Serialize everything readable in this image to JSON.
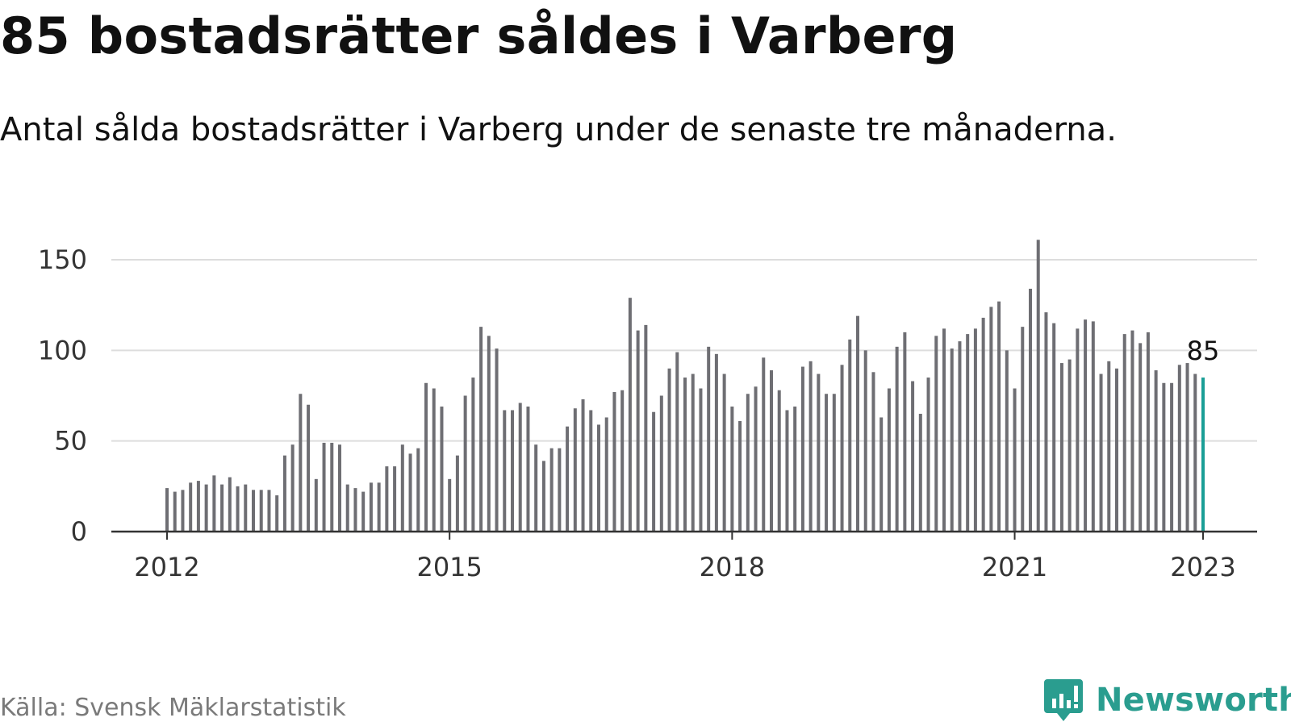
{
  "title": "85 bostadsrätter såldes i Varberg",
  "subtitle": "Antal sålda bostadsrätter i Varberg under de senaste tre månaderna.",
  "source": "Källa: Svensk Mäklarstatistik",
  "brand": {
    "name": "Newsworthy",
    "icon": "newsworthy-logo-icon"
  },
  "colors": {
    "bar": "#6e6e73",
    "highlight": "#1a9e96",
    "grid": "#dddddd",
    "axis": "#333333",
    "brand": "#2a9d8f"
  },
  "chart_data": {
    "type": "bar",
    "title": "85 bostadsrätter såldes i Varberg",
    "xlabel": "",
    "ylabel": "",
    "ylim": [
      0,
      165
    ],
    "yticks": [
      0,
      50,
      100,
      150
    ],
    "xticks": [
      {
        "label": "2012",
        "index": 0
      },
      {
        "label": "2015",
        "index": 36
      },
      {
        "label": "2018",
        "index": 72
      },
      {
        "label": "2021",
        "index": 108
      },
      {
        "label": "2023",
        "index": 132
      }
    ],
    "start": "2012-01",
    "frequency": "monthly",
    "grid": true,
    "legend": "none",
    "values": [
      24,
      22,
      23,
      27,
      28,
      26,
      31,
      26,
      30,
      25,
      26,
      23,
      23,
      23,
      20,
      42,
      48,
      76,
      70,
      29,
      49,
      49,
      48,
      26,
      24,
      22,
      27,
      27,
      36,
      36,
      48,
      43,
      46,
      82,
      79,
      69,
      29,
      42,
      75,
      85,
      113,
      108,
      101,
      67,
      67,
      71,
      69,
      48,
      39,
      46,
      46,
      58,
      68,
      73,
      67,
      59,
      63,
      77,
      78,
      129,
      111,
      114,
      66,
      75,
      90,
      99,
      85,
      87,
      79,
      102,
      98,
      87,
      69,
      61,
      76,
      80,
      96,
      89,
      78,
      67,
      69,
      91,
      94,
      87,
      76,
      76,
      92,
      106,
      119,
      100,
      88,
      63,
      79,
      102,
      110,
      83,
      65,
      85,
      108,
      112,
      101,
      105,
      109,
      112,
      118,
      124,
      127,
      100,
      79,
      113,
      134,
      161,
      121,
      115,
      93,
      95,
      112,
      117,
      116,
      87,
      94,
      90,
      109,
      111,
      104,
      110,
      89,
      82,
      82,
      92,
      93,
      87,
      85
    ],
    "highlight_index": 132,
    "annotation": {
      "index": 132,
      "text": "85"
    }
  }
}
